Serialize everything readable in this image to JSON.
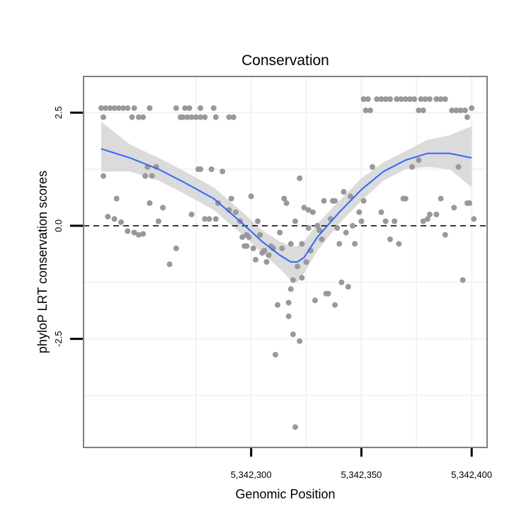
{
  "chart_data": {
    "type": "scatter",
    "title": "Conservation",
    "xlabel": "Genomic Position",
    "ylabel": "phyloP LRT conservation scores",
    "xlim": [
      5342224,
      5342407
    ],
    "ylim": [
      -4.9,
      3.3
    ],
    "x_ticks": [
      {
        "value": 5342300,
        "label": "5,342,300"
      },
      {
        "value": 5342350,
        "label": "5,342,350"
      },
      {
        "value": 5342400,
        "label": "5,342,400"
      }
    ],
    "y_ticks": [
      {
        "value": 2.5,
        "label": "2.5"
      },
      {
        "value": 0.0,
        "label": "0.0"
      },
      {
        "value": -2.5,
        "label": "-2.5"
      }
    ],
    "reference_line": {
      "y": 0,
      "style": "dashed",
      "color": "#000000"
    },
    "colors": {
      "points": "#999999",
      "smooth_line": "#3366ff",
      "ribbon": "#d5d5d5",
      "panel_border": "#7f7f7f",
      "grid": "#f2f2f2"
    },
    "series": [
      {
        "name": "phyloP",
        "kind": "points",
        "points": [
          [
            5342232,
            2.6
          ],
          [
            5342234,
            2.6
          ],
          [
            5342236,
            2.6
          ],
          [
            5342238,
            2.6
          ],
          [
            5342240,
            2.6
          ],
          [
            5342242,
            2.6
          ],
          [
            5342244,
            2.6
          ],
          [
            5342247,
            2.6
          ],
          [
            5342254,
            2.6
          ],
          [
            5342266,
            2.6
          ],
          [
            5342270,
            2.6
          ],
          [
            5342272,
            2.6
          ],
          [
            5342277,
            2.6
          ],
          [
            5342283,
            2.6
          ],
          [
            5342233,
            2.4
          ],
          [
            5342246,
            2.4
          ],
          [
            5342249,
            2.4
          ],
          [
            5342251,
            2.4
          ],
          [
            5342268,
            2.4
          ],
          [
            5342269,
            2.4
          ],
          [
            5342271,
            2.4
          ],
          [
            5342273,
            2.4
          ],
          [
            5342275,
            2.4
          ],
          [
            5342277,
            2.4
          ],
          [
            5342279,
            2.4
          ],
          [
            5342284,
            2.4
          ],
          [
            5342290,
            2.4
          ],
          [
            5342292,
            2.4
          ],
          [
            5342233,
            1.1
          ],
          [
            5342235,
            0.2
          ],
          [
            5342238,
            0.15
          ],
          [
            5342239,
            0.6
          ],
          [
            5342241,
            0.08
          ],
          [
            5342244,
            -0.12
          ],
          [
            5342247,
            -0.15
          ],
          [
            5342249,
            -0.2
          ],
          [
            5342251,
            -0.18
          ],
          [
            5342252,
            1.1
          ],
          [
            5342253,
            1.3
          ],
          [
            5342254,
            0.5
          ],
          [
            5342255,
            1.1
          ],
          [
            5342257,
            1.3
          ],
          [
            5342258,
            0.1
          ],
          [
            5342260,
            0.4
          ],
          [
            5342263,
            -0.85
          ],
          [
            5342266,
            -0.5
          ],
          [
            5342273,
            0.25
          ],
          [
            5342276,
            1.25
          ],
          [
            5342277,
            1.25
          ],
          [
            5342279,
            0.15
          ],
          [
            5342281,
            0.15
          ],
          [
            5342282,
            1.25
          ],
          [
            5342284,
            0.15
          ],
          [
            5342285,
            0.5
          ],
          [
            5342287,
            1.2
          ],
          [
            5342290,
            0.35
          ],
          [
            5342291,
            0.6
          ],
          [
            5342293,
            0.3
          ],
          [
            5342295,
            0.1
          ],
          [
            5342296,
            -0.25
          ],
          [
            5342297,
            -0.45
          ],
          [
            5342298,
            -0.45
          ],
          [
            5342298,
            -0.2
          ],
          [
            5342299,
            -0.25
          ],
          [
            5342300,
            0.65
          ],
          [
            5342301,
            -0.5
          ],
          [
            5342302,
            -0.75
          ],
          [
            5342303,
            0.1
          ],
          [
            5342304,
            -0.2
          ],
          [
            5342305,
            -0.6
          ],
          [
            5342306,
            -0.55
          ],
          [
            5342307,
            -0.8
          ],
          [
            5342308,
            -0.65
          ],
          [
            5342309,
            -0.45
          ],
          [
            5342310,
            -0.5
          ],
          [
            5342311,
            -2.85
          ],
          [
            5342312,
            -1.75
          ],
          [
            5342313,
            -0.15
          ],
          [
            5342314,
            -0.5
          ],
          [
            5342315,
            0.6
          ],
          [
            5342316,
            0.5
          ],
          [
            5342317,
            -2.0
          ],
          [
            5342317,
            -1.7
          ],
          [
            5342318,
            -1.4
          ],
          [
            5342318,
            -0.4
          ],
          [
            5342319,
            -1.2
          ],
          [
            5342319,
            -2.4
          ],
          [
            5342320,
            -4.45
          ],
          [
            5342320,
            0.1
          ],
          [
            5342321,
            -0.9
          ],
          [
            5342322,
            -2.55
          ],
          [
            5342322,
            1.05
          ],
          [
            5342323,
            -0.4
          ],
          [
            5342323,
            -1.15
          ],
          [
            5342324,
            0.4
          ],
          [
            5342325,
            -0.8
          ],
          [
            5342326,
            0.35
          ],
          [
            5342326,
            -0.05
          ],
          [
            5342327,
            -0.55
          ],
          [
            5342328,
            0.3
          ],
          [
            5342329,
            -1.65
          ],
          [
            5342330,
            0.0
          ],
          [
            5342331,
            -0.1
          ],
          [
            5342332,
            -0.3
          ],
          [
            5342333,
            0.55
          ],
          [
            5342334,
            -1.5
          ],
          [
            5342335,
            -1.5
          ],
          [
            5342336,
            0.15
          ],
          [
            5342337,
            0.55
          ],
          [
            5342338,
            0.55
          ],
          [
            5342338,
            -1.75
          ],
          [
            5342339,
            -0.05
          ],
          [
            5342340,
            -0.4
          ],
          [
            5342341,
            -1.25
          ],
          [
            5342342,
            0.75
          ],
          [
            5342343,
            -0.15
          ],
          [
            5342344,
            -1.35
          ],
          [
            5342345,
            0.65
          ],
          [
            5342346,
            0.0
          ],
          [
            5342347,
            -0.4
          ],
          [
            5342351,
            2.8
          ],
          [
            5342353,
            2.8
          ],
          [
            5342352,
            2.55
          ],
          [
            5342354,
            2.55
          ],
          [
            5342357,
            2.8
          ],
          [
            5342359,
            2.8
          ],
          [
            5342361,
            2.8
          ],
          [
            5342363,
            2.8
          ],
          [
            5342366,
            2.8
          ],
          [
            5342368,
            2.8
          ],
          [
            5342370,
            2.8
          ],
          [
            5342372,
            2.8
          ],
          [
            5342374,
            2.8
          ],
          [
            5342377,
            2.8
          ],
          [
            5342379,
            2.8
          ],
          [
            5342381,
            2.8
          ],
          [
            5342384,
            2.8
          ],
          [
            5342386,
            2.8
          ],
          [
            5342388,
            2.8
          ],
          [
            5342376,
            2.55
          ],
          [
            5342378,
            2.55
          ],
          [
            5342391,
            2.55
          ],
          [
            5342393,
            2.55
          ],
          [
            5342395,
            2.55
          ],
          [
            5342397,
            2.55
          ],
          [
            5342400,
            2.6
          ],
          [
            5342398,
            2.4
          ],
          [
            5342349,
            0.3
          ],
          [
            5342350,
            0.1
          ],
          [
            5342351,
            0.55
          ],
          [
            5342355,
            1.3
          ],
          [
            5342359,
            0.3
          ],
          [
            5342361,
            0.1
          ],
          [
            5342363,
            -0.3
          ],
          [
            5342365,
            0.1
          ],
          [
            5342367,
            -0.4
          ],
          [
            5342369,
            0.6
          ],
          [
            5342370,
            0.6
          ],
          [
            5342373,
            1.3
          ],
          [
            5342376,
            1.45
          ],
          [
            5342378,
            0.1
          ],
          [
            5342380,
            0.15
          ],
          [
            5342381,
            0.25
          ],
          [
            5342384,
            0.25
          ],
          [
            5342386,
            0.6
          ],
          [
            5342388,
            -0.2
          ],
          [
            5342392,
            0.4
          ],
          [
            5342394,
            1.3
          ],
          [
            5342396,
            -1.2
          ],
          [
            5342398,
            0.5
          ],
          [
            5342399,
            0.5
          ],
          [
            5342401,
            0.15
          ]
        ]
      },
      {
        "name": "loess fit",
        "kind": "smooth",
        "x": [
          5342232,
          5342245,
          5342258,
          5342270,
          5342283,
          5342295,
          5342305,
          5342313,
          5342318,
          5342321,
          5342324,
          5342330,
          5342340,
          5342350,
          5342360,
          5342370,
          5342380,
          5342390,
          5342400
        ],
        "y": [
          1.7,
          1.5,
          1.25,
          0.95,
          0.6,
          0.1,
          -0.35,
          -0.65,
          -0.8,
          -0.8,
          -0.7,
          -0.25,
          0.3,
          0.8,
          1.2,
          1.45,
          1.6,
          1.6,
          1.5
        ],
        "lower": [
          1.2,
          1.2,
          1.0,
          0.7,
          0.35,
          -0.15,
          -0.6,
          -0.95,
          -1.2,
          -1.25,
          -1.05,
          -0.55,
          0.05,
          0.55,
          1.0,
          1.25,
          1.3,
          1.25,
          0.85
        ],
        "upper": [
          2.3,
          1.8,
          1.5,
          1.2,
          0.85,
          0.35,
          -0.1,
          -0.35,
          -0.45,
          -0.45,
          -0.35,
          0.05,
          0.55,
          1.05,
          1.4,
          1.65,
          1.9,
          2.0,
          2.2
        ]
      }
    ]
  }
}
